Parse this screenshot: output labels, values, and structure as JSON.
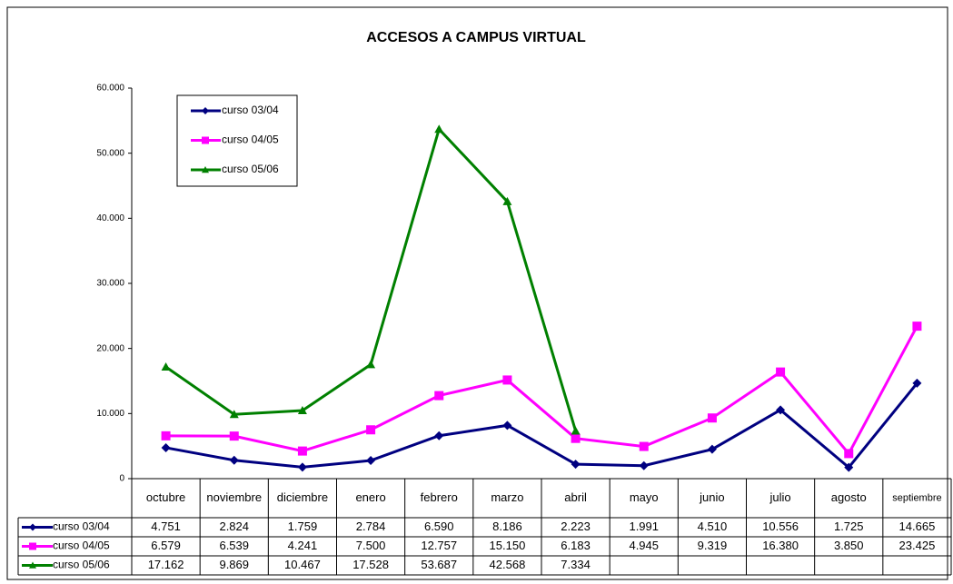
{
  "chart_data": {
    "type": "line",
    "title": "ACCESOS A CAMPUS VIRTUAL",
    "categories": [
      "octubre",
      "noviembre",
      "diciembre",
      "enero",
      "febrero",
      "marzo",
      "abril",
      "mayo",
      "junio",
      "julio",
      "agosto",
      "septiembre"
    ],
    "series": [
      {
        "name": "curso 03/04",
        "color": "#000080",
        "marker": "diamond",
        "values": [
          4751,
          2824,
          1759,
          2784,
          6590,
          8186,
          2223,
          1991,
          4510,
          10556,
          1725,
          14665
        ],
        "value_labels": [
          "4.751",
          "2.824",
          "1.759",
          "2.784",
          "6.590",
          "8.186",
          "2.223",
          "1.991",
          "4.510",
          "10.556",
          "1.725",
          "14.665"
        ]
      },
      {
        "name": "curso 04/05",
        "color": "#ff00ff",
        "marker": "square",
        "values": [
          6579,
          6539,
          4241,
          7500,
          12757,
          15150,
          6183,
          4945,
          9319,
          16380,
          3850,
          23425
        ],
        "value_labels": [
          "6.579",
          "6.539",
          "4.241",
          "7.500",
          "12.757",
          "15.150",
          "6.183",
          "4.945",
          "9.319",
          "16.380",
          "3.850",
          "23.425"
        ]
      },
      {
        "name": "curso 05/06",
        "color": "#008000",
        "marker": "triangle",
        "values": [
          17162,
          9869,
          10467,
          17528,
          53687,
          42568,
          7334,
          null,
          null,
          null,
          null,
          null
        ],
        "value_labels": [
          "17.162",
          "9.869",
          "10.467",
          "17.528",
          "53.687",
          "42.568",
          "7.334",
          null,
          null,
          null,
          null,
          null
        ]
      }
    ],
    "ylim": [
      0,
      60000
    ],
    "yticks": [
      0,
      {
        "value": 10000,
        "label": "10.000"
      },
      {
        "value": 20000,
        "label": "20.000"
      },
      {
        "value": 30000,
        "label": "30.000"
      },
      {
        "value": 40000,
        "label": "40.000"
      },
      {
        "value": 50000,
        "label": "50.000"
      },
      {
        "value": 60000,
        "label": "60.000"
      }
    ],
    "grid": false,
    "legend": "upper left",
    "data_table": true
  }
}
